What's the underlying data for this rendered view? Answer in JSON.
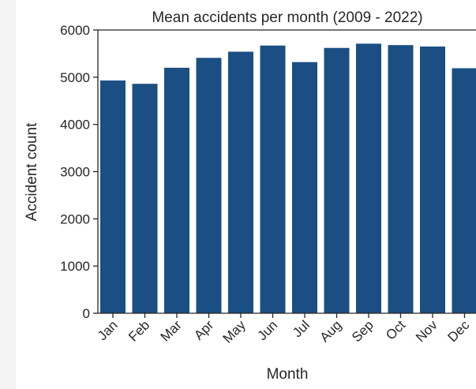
{
  "chart_data": {
    "type": "bar",
    "title": "Mean accidents per month (2009 - 2022)",
    "xlabel": "Month",
    "ylabel": "Accident count",
    "categories": [
      "Jan",
      "Feb",
      "Mar",
      "Apr",
      "May",
      "Jun",
      "Jul",
      "Aug",
      "Sep",
      "Oct",
      "Nov",
      "Dec"
    ],
    "values": [
      4930,
      4860,
      5200,
      5410,
      5540,
      5670,
      5320,
      5620,
      5710,
      5680,
      5650,
      5190
    ],
    "ylim": [
      0,
      6000
    ],
    "yticks": [
      0,
      1000,
      2000,
      3000,
      4000,
      5000,
      6000
    ],
    "grid": false,
    "bar_color": "#1b4f83"
  }
}
